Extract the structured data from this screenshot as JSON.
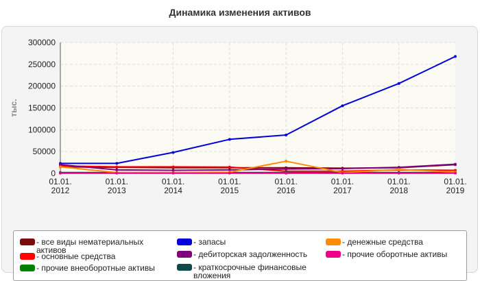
{
  "chart_data": {
    "type": "line",
    "title": "Динамика изменения активов",
    "ylabel": "тыс.",
    "xlabel": "",
    "x": [
      "01.01.2012",
      "01.01.2013",
      "01.01.2014",
      "01.01.2015",
      "01.01.2016",
      "01.01.2017",
      "01.01.2018",
      "01.01.2019"
    ],
    "x_tick_lines": [
      [
        "01.01.",
        "2012"
      ],
      [
        "01.01.",
        "2013"
      ],
      [
        "01.01.",
        "2014"
      ],
      [
        "01.01.",
        "2015"
      ],
      [
        "01.01.",
        "2016"
      ],
      [
        "01.01.",
        "2017"
      ],
      [
        "01.01.",
        "2018"
      ],
      [
        "01.01.",
        "2019"
      ]
    ],
    "ylim": [
      0,
      300000
    ],
    "yticks": [
      0,
      50000,
      100000,
      150000,
      200000,
      250000,
      300000
    ],
    "ytick_labels": [
      "0",
      "50000",
      "100000",
      "150000",
      "200000",
      "250000",
      "300000"
    ],
    "grid": true,
    "legend_position": "bottom",
    "series": [
      {
        "name": "- все виды нематериальных активов",
        "color": "#7b0a0a",
        "values": [
          15000,
          14000,
          13000,
          13000,
          13000,
          12000,
          13000,
          20000
        ]
      },
      {
        "name": "- основные средства",
        "color": "#ff0000",
        "values": [
          17000,
          15000,
          15000,
          14500,
          5000,
          5000,
          8000,
          7000
        ]
      },
      {
        "name": "- прочие внеоборотные активы",
        "color": "#008000",
        "values": [
          1000,
          1000,
          1000,
          1000,
          1000,
          1000,
          1000,
          1000
        ]
      },
      {
        "name": "- запасы",
        "color": "#0000dd",
        "values": [
          23000,
          23000,
          48000,
          78000,
          88000,
          155000,
          206000,
          268000
        ]
      },
      {
        "name": "- дебиторская задолженность",
        "color": "#7f007f",
        "values": [
          20000,
          8000,
          7000,
          8000,
          10000,
          11000,
          14000,
          21000
        ]
      },
      {
        "name": "- краткосрочные финансовые вложения",
        "color": "#0f4a4a",
        "values": [
          2000,
          2000,
          2000,
          2000,
          2000,
          2000,
          2000,
          2000
        ]
      },
      {
        "name": "- денежные средства",
        "color": "#ff8c00",
        "values": [
          15000,
          2000,
          2000,
          3000,
          28000,
          2000,
          9000,
          3000
        ]
      },
      {
        "name": "- прочие оборотные активы",
        "color": "#ee0088",
        "values": [
          500,
          500,
          500,
          500,
          500,
          500,
          500,
          500
        ]
      }
    ]
  }
}
